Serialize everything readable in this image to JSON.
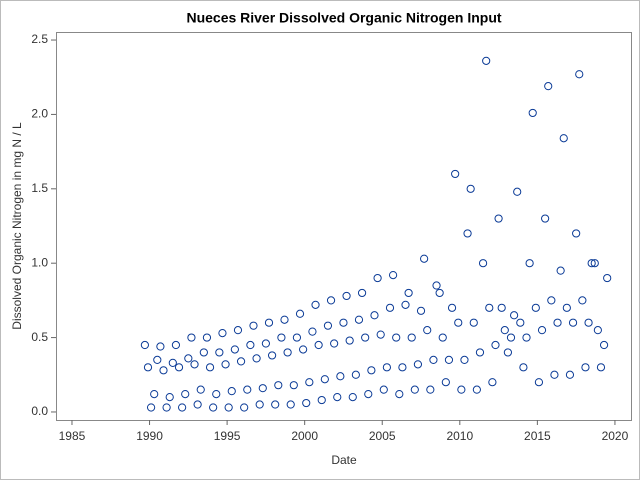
{
  "chart_data": {
    "type": "scatter",
    "title": "Nueces River Dissolved Organic Nitrogen Input",
    "xlabel": "Date",
    "ylabel": "Dissolved Organic Nitrogen in mg N / L",
    "color": "#0a3a96",
    "xlim": [
      1983.97,
      2021.1
    ],
    "ylim": [
      -0.054,
      2.554
    ],
    "xticks": [
      1985,
      1990,
      1995,
      2000,
      2005,
      2010,
      2015,
      2020
    ],
    "yticks": [
      {
        "value": 0,
        "label": "0.0"
      },
      0.5,
      {
        "value": 1,
        "label": "1.0"
      },
      1.5,
      {
        "value": 2,
        "label": "2.0"
      },
      2.5
    ],
    "x": [
      1989.7,
      1989.9,
      1990.1,
      1990.3,
      1990.5,
      1990.7,
      1990.9,
      1991.1,
      1991.3,
      1991.5,
      1991.7,
      1991.9,
      1992.1,
      1992.3,
      1992.5,
      1992.7,
      1992.9,
      1993.1,
      1993.3,
      1993.5,
      1993.7,
      1993.9,
      1994.1,
      1994.3,
      1994.5,
      1994.7,
      1994.9,
      1995.1,
      1995.3,
      1995.5,
      1995.7,
      1995.9,
      1996.1,
      1996.3,
      1996.5,
      1996.7,
      1996.9,
      1997.1,
      1997.3,
      1997.5,
      1997.7,
      1997.9,
      1998.1,
      1998.3,
      1998.5,
      1998.7,
      1998.9,
      1999.1,
      1999.3,
      1999.5,
      1999.7,
      1999.9,
      2000.1,
      2000.3,
      2000.5,
      2000.7,
      2000.9,
      2001.1,
      2001.3,
      2001.5,
      2001.7,
      2001.9,
      2002.1,
      2002.3,
      2002.5,
      2002.7,
      2002.9,
      2003.1,
      2003.3,
      2003.5,
      2003.7,
      2003.9,
      2004.1,
      2004.3,
      2004.5,
      2004.7,
      2004.9,
      2005.1,
      2005.3,
      2005.5,
      2005.7,
      2005.9,
      2006.1,
      2006.3,
      2006.5,
      2006.7,
      2006.9,
      2007.1,
      2007.3,
      2007.5,
      2007.7,
      2007.9,
      2008.1,
      2008.3,
      2008.5,
      2008.7,
      2008.9,
      2009.1,
      2009.3,
      2009.5,
      2009.7,
      2009.9,
      2010.1,
      2010.3,
      2010.5,
      2010.7,
      2010.9,
      2011.1,
      2011.3,
      2011.5,
      2011.7,
      2011.9,
      2012.1,
      2012.3,
      2012.5,
      2012.7,
      2012.9,
      2013.1,
      2013.3,
      2013.5,
      2013.7,
      2013.9,
      2014.1,
      2014.3,
      2014.5,
      2014.7,
      2014.9,
      2015.1,
      2015.3,
      2015.5,
      2015.7,
      2015.9,
      2016.1,
      2016.3,
      2016.5,
      2016.7,
      2016.9,
      2017.1,
      2017.3,
      2017.5,
      2017.7,
      2017.9,
      2018.1,
      2018.3,
      2018.5,
      2018.7,
      2018.9,
      2019.1,
      2019.3,
      2019.5
    ],
    "y": [
      0.45,
      0.3,
      0.03,
      0.12,
      0.35,
      0.44,
      0.28,
      0.03,
      0.1,
      0.33,
      0.45,
      0.3,
      0.03,
      0.12,
      0.36,
      0.5,
      0.32,
      0.05,
      0.15,
      0.4,
      0.5,
      0.3,
      0.03,
      0.12,
      0.4,
      0.53,
      0.32,
      0.03,
      0.14,
      0.42,
      0.55,
      0.34,
      0.03,
      0.15,
      0.45,
      0.58,
      0.36,
      0.05,
      0.16,
      0.46,
      0.6,
      0.38,
      0.05,
      0.18,
      0.5,
      0.62,
      0.4,
      0.05,
      0.18,
      0.5,
      0.66,
      0.42,
      0.06,
      0.2,
      0.54,
      0.72,
      0.45,
      0.08,
      0.22,
      0.58,
      0.75,
      0.46,
      0.1,
      0.24,
      0.6,
      0.78,
      0.48,
      0.1,
      0.25,
      0.62,
      0.8,
      0.5,
      0.12,
      0.28,
      0.65,
      0.9,
      0.52,
      0.15,
      0.3,
      0.7,
      0.92,
      0.5,
      0.12,
      0.3,
      0.72,
      0.8,
      0.5,
      0.15,
      0.32,
      0.68,
      1.03,
      0.55,
      0.15,
      0.35,
      0.85,
      0.8,
      0.5,
      0.2,
      0.35,
      0.7,
      1.6,
      0.6,
      0.15,
      0.35,
      1.2,
      1.5,
      0.6,
      0.15,
      0.4,
      1.0,
      2.36,
      0.7,
      0.2,
      0.45,
      1.3,
      0.7,
      0.55,
      0.4,
      0.5,
      0.65,
      1.48,
      0.6,
      0.3,
      0.5,
      1.0,
      2.01,
      0.7,
      0.2,
      0.55,
      1.3,
      2.19,
      0.75,
      0.25,
      0.6,
      0.95,
      1.84,
      0.7,
      0.25,
      0.6,
      1.2,
      2.27,
      0.75,
      0.3,
      0.6,
      1.0,
      1.0,
      0.55,
      0.3,
      0.45,
      0.9
    ]
  }
}
